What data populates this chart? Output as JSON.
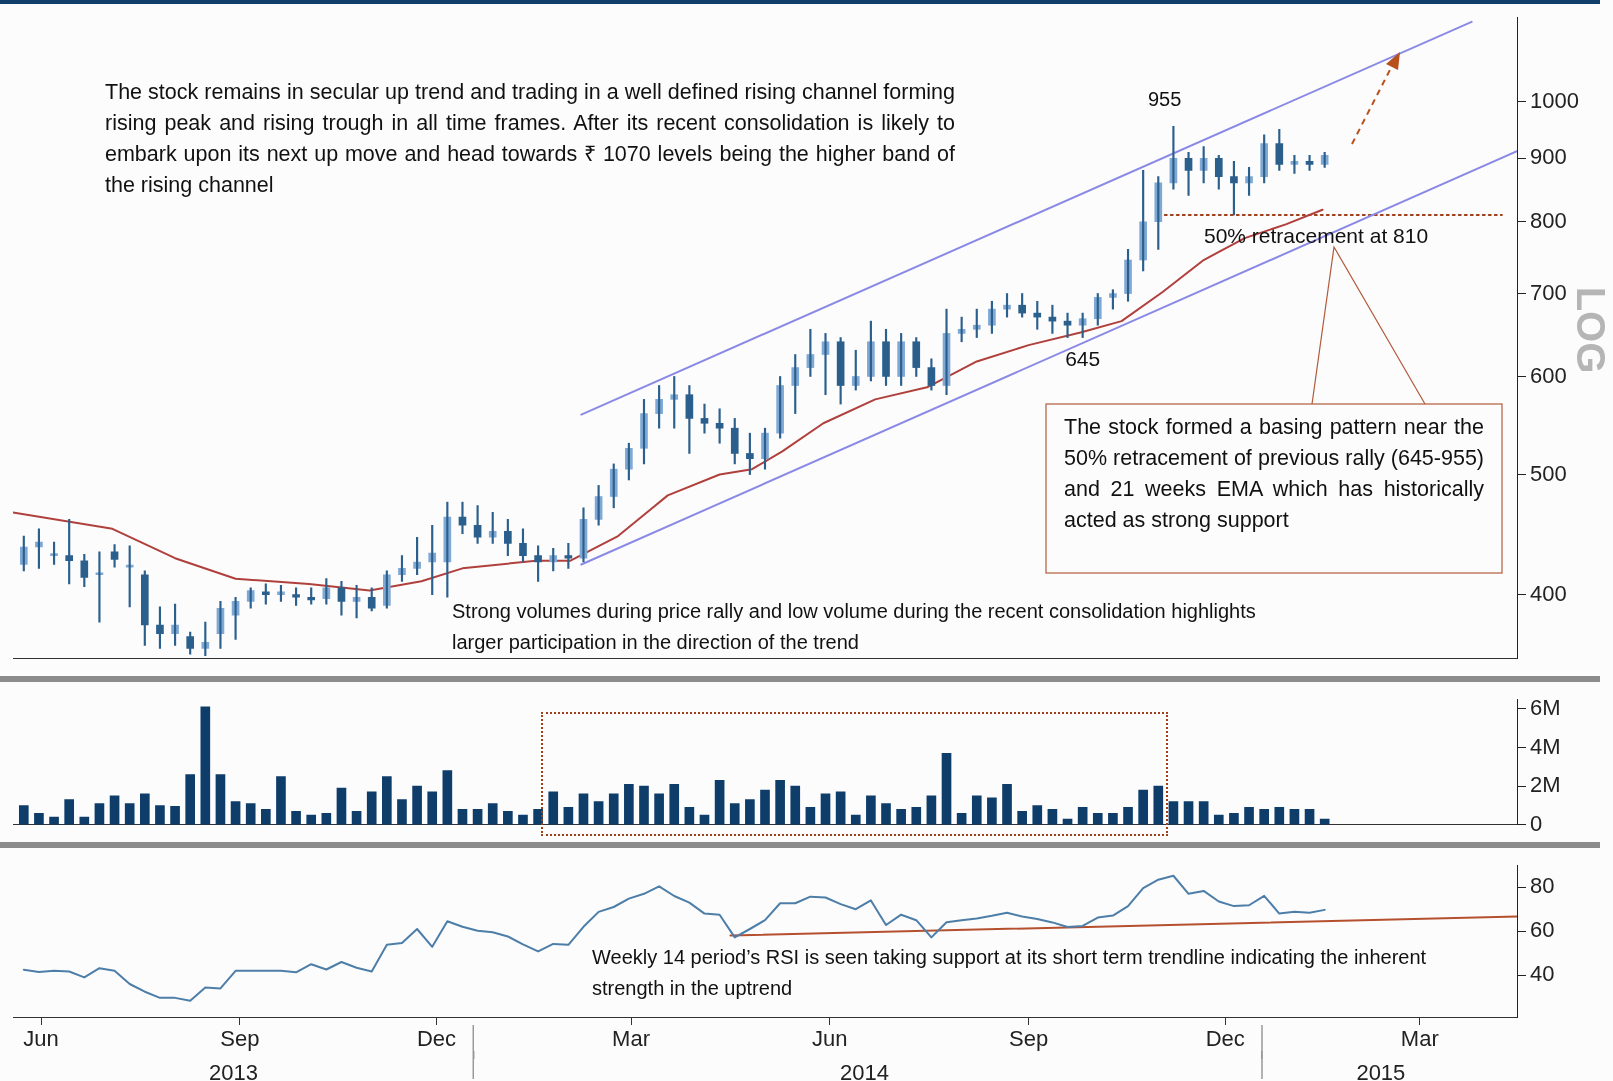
{
  "chart_data": [
    {
      "type": "candlestick",
      "ylabel": "LOG",
      "color": "#2b5f8c",
      "colors": [
        "#7fa8d4",
        "#7fa8d4",
        "#7fa8d4",
        "#2b5f8c",
        "#2b5f8c",
        "#7fa8d4",
        "#2b5f8c",
        "#7fa8d4",
        "#2b5f8c",
        "#2b5f8c",
        "#7fa8d4",
        "#2b5f8c",
        "#7fa8d4",
        "#7fa8d4",
        "#7fa8d4",
        "#7fa8d4",
        "#2b5f8c",
        "#7fa8d4",
        "#2b5f8c",
        "#2b5f8c",
        "#7fa8d4",
        "#2b5f8c",
        "#7fa8d4",
        "#2b5f8c",
        "#7fa8d4",
        "#7fa8d4",
        "#7fa8d4",
        "#7fa8d4",
        "#7fa8d4",
        "#2b5f8c",
        "#2b5f8c",
        "#7fa8d4",
        "#2b5f8c",
        "#2b5f8c",
        "#2b5f8c",
        "#7fa8d4",
        "#2b5f8c",
        "#7fa8d4",
        "#7fa8d4",
        "#7fa8d4",
        "#7fa8d4",
        "#7fa8d4",
        "#7fa8d4",
        "#7fa8d4",
        "#2b5f8c",
        "#2b5f8c",
        "#2b5f8c",
        "#2b5f8c",
        "#2b5f8c",
        "#7fa8d4",
        "#7fa8d4",
        "#7fa8d4",
        "#7fa8d4",
        "#7fa8d4",
        "#2b5f8c",
        "#7fa8d4",
        "#7fa8d4",
        "#2b5f8c",
        "#7fa8d4",
        "#2b5f8c",
        "#2b5f8c",
        "#7fa8d4",
        "#7fa8d4",
        "#7fa8d4",
        "#7fa8d4",
        "#7fa8d4",
        "#2b5f8c",
        "#2b5f8c",
        "#2b5f8c",
        "#2b5f8c",
        "#7fa8d4",
        "#7fa8d4",
        "#7fa8d4",
        "#7fa8d4",
        "#7fa8d4",
        "#7fa8d4",
        "#7fa8d4",
        "#2b5f8c",
        "#7fa8d4",
        "#2b5f8c",
        "#2b5f8c",
        "#7fa8d4",
        "#7fa8d4",
        "#2b5f8c",
        "#7fa8d4",
        "#2b5f8c",
        "#7fa8d4"
      ],
      "log": true,
      "grid": false,
      "legend": false,
      "tick_labels": "y",
      "marker": "none",
      "xlim": [
        "2013-06-02",
        "2015-04-29"
      ],
      "ylim": [
        355,
        1170
      ],
      "yticks": [
        400,
        500,
        600,
        700,
        800,
        900,
        1000
      ],
      "x": [
        "2013-06-07",
        "2013-06-14",
        "2013-06-21",
        "2013-06-28",
        "2013-07-05",
        "2013-07-12",
        "2013-07-19",
        "2013-07-26",
        "2013-08-02",
        "2013-08-09",
        "2013-08-16",
        "2013-08-23",
        "2013-08-30",
        "2013-09-06",
        "2013-09-13",
        "2013-09-20",
        "2013-09-27",
        "2013-10-04",
        "2013-10-11",
        "2013-10-18",
        "2013-10-25",
        "2013-11-01",
        "2013-11-08",
        "2013-11-15",
        "2013-11-22",
        "2013-11-29",
        "2013-12-06",
        "2013-12-13",
        "2013-12-20",
        "2013-12-27",
        "2014-01-03",
        "2014-01-10",
        "2014-01-17",
        "2014-01-24",
        "2014-01-31",
        "2014-02-07",
        "2014-02-14",
        "2014-02-21",
        "2014-02-28",
        "2014-03-07",
        "2014-03-14",
        "2014-03-21",
        "2014-03-28",
        "2014-04-04",
        "2014-04-11",
        "2014-04-18",
        "2014-04-25",
        "2014-05-02",
        "2014-05-09",
        "2014-05-16",
        "2014-05-23",
        "2014-05-30",
        "2014-06-06",
        "2014-06-13",
        "2014-06-20",
        "2014-06-27",
        "2014-07-04",
        "2014-07-11",
        "2014-07-18",
        "2014-07-25",
        "2014-08-01",
        "2014-08-08",
        "2014-08-15",
        "2014-08-22",
        "2014-08-29",
        "2014-09-05",
        "2014-09-12",
        "2014-09-19",
        "2014-09-26",
        "2014-10-03",
        "2014-10-10",
        "2014-10-17",
        "2014-10-24",
        "2014-10-31",
        "2014-11-07",
        "2014-11-14",
        "2014-11-21",
        "2014-11-28",
        "2014-12-05",
        "2014-12-12",
        "2014-12-19",
        "2014-12-26",
        "2015-01-02",
        "2015-01-09",
        "2015-01-16",
        "2015-01-23",
        "2015-01-30"
      ],
      "ohlc": [
        [
          423,
          446,
          418,
          437
        ],
        [
          437,
          452,
          420,
          441
        ],
        [
          430,
          441,
          423,
          430
        ],
        [
          430,
          460,
          408,
          426
        ],
        [
          426,
          431,
          406,
          413
        ],
        [
          415,
          433,
          380,
          415
        ],
        [
          433,
          439,
          421,
          427
        ],
        [
          421,
          438,
          391,
          421
        ],
        [
          415,
          418,
          364,
          378
        ],
        [
          378,
          391,
          362,
          372
        ],
        [
          372,
          393,
          364,
          378
        ],
        [
          370,
          373,
          358,
          362
        ],
        [
          362,
          380,
          357,
          366
        ],
        [
          372,
          395,
          362,
          390
        ],
        [
          385,
          398,
          368,
          395
        ],
        [
          395,
          405,
          390,
          403
        ],
        [
          402,
          408,
          393,
          400
        ],
        [
          400,
          407,
          395,
          402
        ],
        [
          400,
          405,
          392,
          398
        ],
        [
          398,
          405,
          393,
          396
        ],
        [
          397,
          412,
          393,
          405
        ],
        [
          405,
          410,
          385,
          395
        ],
        [
          395,
          407,
          383,
          398
        ],
        [
          398,
          405,
          388,
          390
        ],
        [
          392,
          418,
          390,
          415
        ],
        [
          415,
          430,
          410,
          420
        ],
        [
          420,
          445,
          415,
          425
        ],
        [
          425,
          455,
          400,
          432
        ],
        [
          425,
          475,
          398,
          462
        ],
        [
          462,
          475,
          448,
          455
        ],
        [
          455,
          472,
          440,
          445
        ],
        [
          445,
          466,
          440,
          450
        ],
        [
          450,
          460,
          430,
          440
        ],
        [
          440,
          452,
          425,
          430
        ],
        [
          430,
          438,
          410,
          425
        ],
        [
          425,
          436,
          418,
          430
        ],
        [
          430,
          440,
          420,
          428
        ],
        [
          428,
          470,
          425,
          460
        ],
        [
          460,
          490,
          455,
          480
        ],
        [
          480,
          510,
          470,
          505
        ],
        [
          505,
          530,
          495,
          525
        ],
        [
          525,
          575,
          510,
          560
        ],
        [
          560,
          590,
          545,
          575
        ],
        [
          575,
          600,
          545,
          580
        ],
        [
          580,
          590,
          520,
          555
        ],
        [
          555,
          570,
          540,
          550
        ],
        [
          550,
          565,
          530,
          545
        ],
        [
          545,
          555,
          510,
          520
        ],
        [
          520,
          540,
          500,
          515
        ],
        [
          515,
          545,
          505,
          540
        ],
        [
          540,
          600,
          535,
          590
        ],
        [
          590,
          625,
          560,
          610
        ],
        [
          610,
          655,
          600,
          625
        ],
        [
          625,
          650,
          580,
          640
        ],
        [
          640,
          645,
          570,
          590
        ],
        [
          590,
          630,
          585,
          600
        ],
        [
          600,
          665,
          595,
          640
        ],
        [
          640,
          655,
          590,
          600
        ],
        [
          600,
          650,
          590,
          640
        ],
        [
          640,
          645,
          600,
          610
        ],
        [
          610,
          620,
          585,
          590
        ],
        [
          590,
          680,
          580,
          650
        ],
        [
          650,
          670,
          640,
          655
        ],
        [
          655,
          680,
          645,
          660
        ],
        [
          660,
          690,
          650,
          680
        ],
        [
          680,
          700,
          670,
          685
        ],
        [
          685,
          700,
          670,
          675
        ],
        [
          675,
          690,
          655,
          670
        ],
        [
          670,
          685,
          650,
          665
        ],
        [
          665,
          675,
          645,
          660
        ],
        [
          660,
          675,
          645,
          668
        ],
        [
          668,
          700,
          660,
          695
        ],
        [
          695,
          705,
          680,
          700
        ],
        [
          700,
          760,
          690,
          745
        ],
        [
          745,
          880,
          730,
          800
        ],
        [
          800,
          870,
          760,
          860
        ],
        [
          860,
          955,
          850,
          900
        ],
        [
          900,
          910,
          840,
          880
        ],
        [
          880,
          920,
          860,
          900
        ],
        [
          900,
          905,
          850,
          870
        ],
        [
          870,
          895,
          810,
          860
        ],
        [
          860,
          885,
          840,
          870
        ],
        [
          870,
          940,
          860,
          925
        ],
        [
          925,
          950,
          880,
          890
        ],
        [
          890,
          905,
          875,
          895
        ],
        [
          895,
          905,
          880,
          890
        ],
        [
          890,
          910,
          885,
          905
        ]
      ],
      "series": [
        {
          "type": "line",
          "color": "#b0403c",
          "x": [
            "2013-06-02",
            "2013-07-18",
            "2013-08-16",
            "2013-09-13",
            "2013-10-17",
            "2013-11-14",
            "2013-12-08",
            "2013-12-27",
            "2014-01-30",
            "2014-02-15",
            "2014-03-09",
            "2014-04-01",
            "2014-04-25",
            "2014-05-10",
            "2014-05-24",
            "2014-06-12",
            "2014-07-06",
            "2014-07-30",
            "2014-08-22",
            "2014-09-15",
            "2014-10-09",
            "2014-10-28",
            "2014-11-16",
            "2014-12-05",
            "2014-12-24",
            "2015-01-12",
            "2015-01-29"
          ],
          "values": [
            466,
            452,
            428,
            412,
            408,
            403,
            410,
            420,
            426,
            426,
            446,
            481,
            500,
            505,
            522,
            550,
            575,
            588,
            617,
            636,
            651,
            665,
            702,
            745,
            776,
            796,
            818
          ]
        },
        {
          "type": "line",
          "color": "#8a8ae6",
          "x": [
            "2014-02-20",
            "2015-04-08"
          ],
          "values": [
            559,
            1160
          ]
        },
        {
          "type": "line",
          "color": "#8a8ae6",
          "x": [
            "2014-02-20",
            "2015-04-29"
          ],
          "values": [
            423,
            912
          ]
        },
        {
          "type": "line",
          "color": "#a0401a",
          "line_style": "dotted",
          "x": [
            "2014-11-17",
            "2015-04-22"
          ],
          "values": [
            810,
            810
          ]
        }
      ],
      "annotations": [
        "The stock remains in secular up trend and trading in a well defined rising channel forming rising peak and rising trough in all time frames. After its recent consolidation is likely to embark upon its next up move and head towards ₹ 1070 levels being the higher band of the rising channel",
        "Strong volumes during price rally and low volume during the recent consolidation highlights larger participation in the direction of the trend",
        "The stock formed a basing pattern near the 50% retracement of previous rally (645-955) and 21 weeks EMA which has historically acted as strong support",
        "955",
        {
          "text": "645",
          "x": "2014-10-10",
          "y": 645
        },
        {
          "text": "50% retracement at 810",
          "x": "2015-01-26",
          "y": 810
        }
      ]
    },
    {
      "type": "bar",
      "color": "#0f3d6a",
      "grid": false,
      "legend": false,
      "tick_labels": "y",
      "xlim": [
        "2013-06-02",
        "2015-04-29"
      ],
      "ylim": [
        0,
        6.5
      ],
      "yticks": [
        0,
        {
          "value": 2,
          "label": "2M"
        },
        {
          "value": 4,
          "label": "4M"
        },
        {
          "value": 6,
          "label": "6M"
        }
      ],
      "x": [
        "2013-06-07",
        "2013-06-14",
        "2013-06-21",
        "2013-06-28",
        "2013-07-05",
        "2013-07-12",
        "2013-07-19",
        "2013-07-26",
        "2013-08-02",
        "2013-08-09",
        "2013-08-16",
        "2013-08-23",
        "2013-08-30",
        "2013-09-06",
        "2013-09-13",
        "2013-09-20",
        "2013-09-27",
        "2013-10-04",
        "2013-10-11",
        "2013-10-18",
        "2013-10-25",
        "2013-11-01",
        "2013-11-08",
        "2013-11-15",
        "2013-11-22",
        "2013-11-29",
        "2013-12-06",
        "2013-12-13",
        "2013-12-20",
        "2013-12-27",
        "2014-01-03",
        "2014-01-10",
        "2014-01-17",
        "2014-01-24",
        "2014-01-31",
        "2014-02-07",
        "2014-02-14",
        "2014-02-21",
        "2014-02-28",
        "2014-03-07",
        "2014-03-14",
        "2014-03-21",
        "2014-03-28",
        "2014-04-04",
        "2014-04-11",
        "2014-04-18",
        "2014-04-25",
        "2014-05-02",
        "2014-05-09",
        "2014-05-16",
        "2014-05-23",
        "2014-05-30",
        "2014-06-06",
        "2014-06-13",
        "2014-06-20",
        "2014-06-27",
        "2014-07-04",
        "2014-07-11",
        "2014-07-18",
        "2014-07-25",
        "2014-08-01",
        "2014-08-08",
        "2014-08-15",
        "2014-08-22",
        "2014-08-29",
        "2014-09-05",
        "2014-09-12",
        "2014-09-19",
        "2014-09-26",
        "2014-10-03",
        "2014-10-10",
        "2014-10-17",
        "2014-10-24",
        "2014-10-31",
        "2014-11-07",
        "2014-11-14",
        "2014-11-21",
        "2014-11-28",
        "2014-12-05",
        "2014-12-12",
        "2014-12-19",
        "2014-12-26",
        "2015-01-02",
        "2015-01-09",
        "2015-01-16",
        "2015-01-23",
        "2015-01-30"
      ],
      "values": [
        1.0,
        0.6,
        0.4,
        1.3,
        0.4,
        1.1,
        1.5,
        1.1,
        1.6,
        1.0,
        0.95,
        2.6,
        6.1,
        2.6,
        1.2,
        1.1,
        0.8,
        2.5,
        0.7,
        0.5,
        0.6,
        1.9,
        0.7,
        1.7,
        2.5,
        1.3,
        2.0,
        1.7,
        2.8,
        0.8,
        0.8,
        1.1,
        0.7,
        0.5,
        0.8,
        1.7,
        0.9,
        1.6,
        1.2,
        1.6,
        2.1,
        2.0,
        1.6,
        2.1,
        0.9,
        0.5,
        2.3,
        1.1,
        1.3,
        1.8,
        2.3,
        2.0,
        0.9,
        1.6,
        1.7,
        0.5,
        1.5,
        1.1,
        0.8,
        0.9,
        1.5,
        3.7,
        0.6,
        1.5,
        1.4,
        2.1,
        0.7,
        1.0,
        0.8,
        0.3,
        0.9,
        0.6,
        0.6,
        0.9,
        1.8,
        2.0,
        1.2,
        1.2,
        1.2,
        0.5,
        0.6,
        0.9,
        0.8,
        0.9,
        0.8,
        0.8,
        0.3
      ]
    },
    {
      "type": "line",
      "color": "#4d7ea8",
      "grid": false,
      "legend": false,
      "marker": "none",
      "xlim": [
        "2013-06-02",
        "2015-04-29"
      ],
      "ylim": [
        21,
        90
      ],
      "yticks": [
        40,
        60,
        80
      ],
      "xticks": [
        {
          "value": "2013-06-15",
          "label": "Jun"
        },
        {
          "value": "2013-09-15",
          "label": "Sep"
        },
        {
          "value": "2013-12-15",
          "label": "Dec"
        },
        {
          "value": "2014-03-15",
          "label": "Mar"
        },
        {
          "value": "2014-06-15",
          "label": "Jun"
        },
        {
          "value": "2014-09-15",
          "label": "Sep"
        },
        {
          "value": "2014-12-15",
          "label": "Dec"
        },
        {
          "value": "2015-03-15",
          "label": "Mar"
        }
      ],
      "x2lim": [
        "2013-06-02",
        "2015-04-29"
      ],
      "x2ticks": [
        {
          "value": "2013-09-12",
          "label": "2013"
        },
        {
          "value": "2014-01-01",
          "label": null
        },
        {
          "value": "2014-07-01",
          "label": "2014"
        },
        {
          "value": "2015-01-01",
          "label": null
        },
        {
          "value": "2015-02-25",
          "label": "2015"
        }
      ],
      "x": [
        "2013-06-07",
        "2013-06-14",
        "2013-06-21",
        "2013-06-28",
        "2013-07-05",
        "2013-07-12",
        "2013-07-19",
        "2013-07-26",
        "2013-08-02",
        "2013-08-09",
        "2013-08-16",
        "2013-08-23",
        "2013-08-30",
        "2013-09-06",
        "2013-09-13",
        "2013-09-20",
        "2013-09-27",
        "2013-10-04",
        "2013-10-11",
        "2013-10-18",
        "2013-10-25",
        "2013-11-01",
        "2013-11-08",
        "2013-11-15",
        "2013-11-22",
        "2013-11-29",
        "2013-12-06",
        "2013-12-13",
        "2013-12-20",
        "2013-12-27",
        "2014-01-03",
        "2014-01-10",
        "2014-01-17",
        "2014-01-24",
        "2014-01-31",
        "2014-02-07",
        "2014-02-14",
        "2014-02-21",
        "2014-02-28",
        "2014-03-07",
        "2014-03-14",
        "2014-03-21",
        "2014-03-28",
        "2014-04-04",
        "2014-04-11",
        "2014-04-18",
        "2014-04-25",
        "2014-05-02",
        "2014-05-09",
        "2014-05-16",
        "2014-05-23",
        "2014-05-30",
        "2014-06-06",
        "2014-06-13",
        "2014-06-20",
        "2014-06-27",
        "2014-07-04",
        "2014-07-11",
        "2014-07-18",
        "2014-07-25",
        "2014-08-01",
        "2014-08-08",
        "2014-08-15",
        "2014-08-22",
        "2014-08-29",
        "2014-09-05",
        "2014-09-12",
        "2014-09-19",
        "2014-09-26",
        "2014-10-03",
        "2014-10-10",
        "2014-10-17",
        "2014-10-24",
        "2014-10-31",
        "2014-11-07",
        "2014-11-14",
        "2014-11-21",
        "2014-11-28",
        "2014-12-05",
        "2014-12-12",
        "2014-12-19",
        "2014-12-26",
        "2015-01-02",
        "2015-01-09",
        "2015-01-16",
        "2015-01-23",
        "2015-01-30"
      ],
      "values": [
        42.5,
        41.5,
        42,
        41.7,
        39,
        43.2,
        42,
        36,
        32.5,
        29.7,
        29.7,
        28.4,
        34.4,
        34,
        42,
        42,
        42,
        42,
        41.3,
        45,
        42.6,
        46,
        43.4,
        41.7,
        53.8,
        54.6,
        61,
        52.9,
        64.5,
        62,
        60.2,
        59.5,
        57.6,
        54,
        50.8,
        54.2,
        53.8,
        62,
        68.8,
        71,
        74.8,
        77,
        80.4,
        76,
        73,
        68,
        67.5,
        57.2,
        61,
        65,
        72.7,
        72.7,
        75.7,
        75.3,
        72.3,
        70,
        74,
        62.8,
        67.5,
        65,
        57.2,
        64.1,
        65,
        65.8,
        67,
        68.4,
        66.7,
        65.5,
        64,
        61.9,
        62.4,
        66.2,
        67.1,
        71.4,
        79.6,
        83.4,
        85.2,
        77,
        78.3,
        73.5,
        71.4,
        71.8,
        76.1,
        68,
        68.8,
        68.4,
        69.7
      ],
      "series": [
        {
          "type": "line",
          "color": "#b5502e",
          "x": [
            "2014-04-30",
            "2015-04-29"
          ],
          "values": [
            58,
            66.7
          ]
        }
      ],
      "annotations": [
        "Weekly 14 period’s RSI is seen taking support at its short term trendline indicating the inherent strength in the uptrend"
      ]
    }
  ]
}
